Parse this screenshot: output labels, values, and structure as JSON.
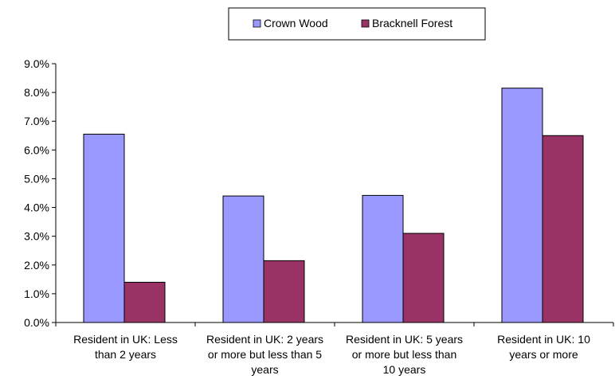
{
  "chart_data": {
    "type": "bar",
    "title": "",
    "xlabel": "",
    "ylabel": "",
    "categories": [
      [
        "Resident in UK: Less",
        "than 2 years"
      ],
      [
        "Resident in UK: 2 years",
        "or more but less than 5",
        "years"
      ],
      [
        "Resident in UK: 5 years",
        "or more but less than",
        "10 years"
      ],
      [
        "Resident in UK: 10",
        "years or more"
      ]
    ],
    "series": [
      {
        "name": "Crown Wood",
        "color": "#9999ff",
        "values": [
          6.55,
          4.4,
          4.42,
          8.15
        ]
      },
      {
        "name": "Bracknell Forest",
        "color": "#993366",
        "values": [
          1.4,
          2.15,
          3.1,
          6.5
        ]
      }
    ],
    "ylim": [
      0,
      9
    ],
    "yticks": [
      "0.0%",
      "1.0%",
      "2.0%",
      "3.0%",
      "4.0%",
      "5.0%",
      "6.0%",
      "7.0%",
      "8.0%",
      "9.0%"
    ],
    "legend_position": "top-center",
    "grid": false
  }
}
